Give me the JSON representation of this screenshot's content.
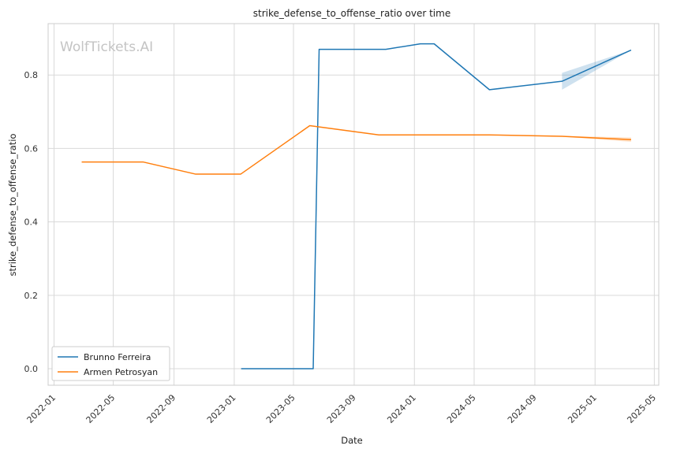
{
  "chart_data": {
    "type": "line",
    "title": "strike_defense_to_offense_ratio over time",
    "xlabel": "Date",
    "ylabel": "strike_defense_to_offense_ratio",
    "watermark": "WolfTickets.AI",
    "xlim": [
      "2021-12-20",
      "2025-05-10"
    ],
    "ylim": [
      -0.045,
      0.94
    ],
    "x_ticks": [
      "2022-01",
      "2022-05",
      "2022-09",
      "2023-01",
      "2023-05",
      "2023-09",
      "2024-01",
      "2024-05",
      "2024-09",
      "2025-01",
      "2025-05"
    ],
    "y_ticks": [
      "0.0",
      "0.2",
      "0.4",
      "0.6",
      "0.8"
    ],
    "grid": true,
    "legend_position": "lower-left",
    "series": [
      {
        "name": "Brunno Ferreira",
        "color": "#1f77b4",
        "points": [
          {
            "x": "2023-01-15",
            "y": 0.0
          },
          {
            "x": "2023-06-10",
            "y": 0.0
          },
          {
            "x": "2023-06-22",
            "y": 0.87
          },
          {
            "x": "2023-11-04",
            "y": 0.87
          },
          {
            "x": "2024-01-13",
            "y": 0.885
          },
          {
            "x": "2024-02-10",
            "y": 0.885
          },
          {
            "x": "2024-06-01",
            "y": 0.76
          },
          {
            "x": "2024-10-26",
            "y": 0.783
          },
          {
            "x": "2025-03-15",
            "y": 0.868
          }
        ],
        "band": [
          {
            "x": "2024-10-26",
            "low": 0.76,
            "high": 0.806
          },
          {
            "x": "2025-03-15",
            "low": 0.868,
            "high": 0.868
          }
        ]
      },
      {
        "name": "Armen Petrosyan",
        "color": "#ff7f0e",
        "points": [
          {
            "x": "2022-02-26",
            "y": 0.563
          },
          {
            "x": "2022-07-01",
            "y": 0.563
          },
          {
            "x": "2022-10-15",
            "y": 0.53
          },
          {
            "x": "2023-01-14",
            "y": 0.53
          },
          {
            "x": "2023-06-03",
            "y": 0.662
          },
          {
            "x": "2023-10-21",
            "y": 0.637
          },
          {
            "x": "2024-06-01",
            "y": 0.637
          },
          {
            "x": "2024-10-26",
            "y": 0.633
          },
          {
            "x": "2025-03-15",
            "y": 0.624
          }
        ],
        "band": [
          {
            "x": "2024-10-26",
            "low": 0.632,
            "high": 0.634
          },
          {
            "x": "2025-03-15",
            "low": 0.618,
            "high": 0.63
          }
        ]
      }
    ]
  }
}
